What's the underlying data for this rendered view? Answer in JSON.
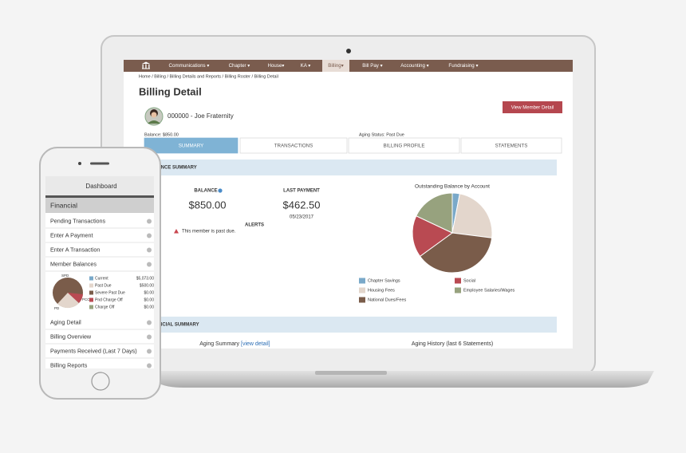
{
  "nav": {
    "items": [
      "Communications ▾",
      "Chapter ▾",
      "House▾",
      "KA ▾",
      "Billing▾",
      "Bill Pay ▾",
      "Accounting ▾",
      "Fundraising ▾"
    ]
  },
  "breadcrumb": "Home / Billing / Billing Details and Reports / Billing Roster / Billing Detail",
  "header": {
    "title": "Billing Detail",
    "member": "000000 - Joe Fraternity",
    "button": "View Member Detail",
    "balance": "Balance: $850.00",
    "aging_status": "Aging Status: Past Due"
  },
  "tabs": [
    "SUMMARY",
    "TRANSACTIONS",
    "BILLING PROFILE",
    "STATEMENTS"
  ],
  "balance_summary": {
    "heading": "BALANCE SUMMARY",
    "balance_label": "BALANCE",
    "balance": "$850.00",
    "last_payment_label": "LAST PAYMENT",
    "last_payment": "$462.50",
    "last_payment_date": "05/23/2017",
    "alerts_label": "ALERTS",
    "alert": "This member is past due.",
    "chart": {
      "type": "pie",
      "title": "Outstanding Balance by Account",
      "categories": [
        "Chapter Savings",
        "Housing Fees",
        "National Dues/Fees",
        "Social",
        "Employee Salaries/Wages"
      ],
      "values": [
        3,
        24,
        38,
        17,
        18
      ],
      "colors": [
        "#7aa9c9",
        "#e3d6cc",
        "#7a5c4a",
        "#b94a52",
        "#97a27e"
      ]
    }
  },
  "financial_summary": {
    "heading": "FINANCIAL SUMMARY",
    "aging_summary": "Aging Summary",
    "view_detail": "[view detail]",
    "aging_history": "Aging History (last 6 Statements)"
  },
  "phone": {
    "header": "Dashboard",
    "section": "Financial",
    "menu": [
      "Pending Transactions",
      "Enter A Payment",
      "Enter A Transaction",
      "Member Balances"
    ],
    "balances": {
      "pie_labels": [
        "SPD",
        "PCO",
        "PD"
      ],
      "rows": [
        {
          "name": "Current",
          "value": "$5,073.00",
          "color": "#7aa9c9"
        },
        {
          "name": "Past Due",
          "value": "$500.00",
          "color": "#e3d6cc"
        },
        {
          "name": "Severe Past Due",
          "value": "$0.00",
          "color": "#7a5c4a"
        },
        {
          "name": "Pnd Charge Off",
          "value": "$0.00",
          "color": "#b94a52"
        },
        {
          "name": "Charge Off",
          "value": "$0.00",
          "color": "#97a27e"
        }
      ]
    },
    "menu_more": [
      "Aging Detail",
      "Billing Overview",
      "Payments Received (Last 7 Days)",
      "Billing Reports"
    ]
  }
}
